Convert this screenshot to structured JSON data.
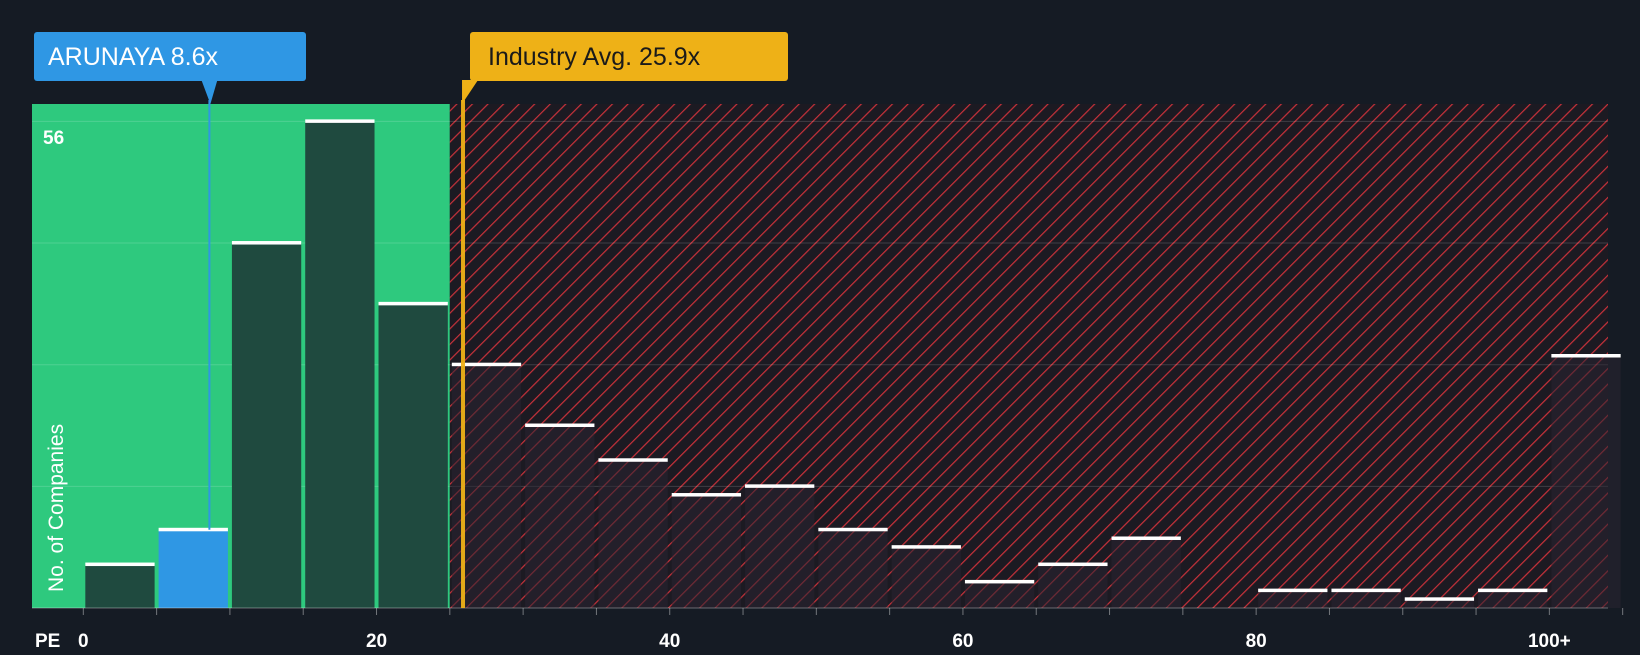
{
  "chart_data": {
    "type": "bar",
    "xlabel": "PE",
    "ylabel": "No. of Companies",
    "x_ticks": [
      {
        "value": 0,
        "label": "0"
      },
      {
        "value": 20,
        "label": "20"
      },
      {
        "value": 40,
        "label": "40"
      },
      {
        "value": 60,
        "label": "60"
      },
      {
        "value": 80,
        "label": "80"
      },
      {
        "value": 100,
        "label": "100+"
      }
    ],
    "xlim": [
      -3.5,
      104
    ],
    "ylim": [
      0,
      58
    ],
    "y_max_label": "56",
    "gridlines_y": [
      14,
      28,
      42,
      56
    ],
    "bin_width": 5,
    "bins": [
      {
        "start": 0,
        "end": 5,
        "value": 5
      },
      {
        "start": 5,
        "end": 10,
        "value": 9,
        "highlight": true
      },
      {
        "start": 10,
        "end": 15,
        "value": 42
      },
      {
        "start": 15,
        "end": 20,
        "value": 56
      },
      {
        "start": 20,
        "end": 25,
        "value": 35
      },
      {
        "start": 25,
        "end": 30,
        "value": 28
      },
      {
        "start": 30,
        "end": 35,
        "value": 21
      },
      {
        "start": 35,
        "end": 40,
        "value": 17
      },
      {
        "start": 40,
        "end": 45,
        "value": 13
      },
      {
        "start": 45,
        "end": 50,
        "value": 14
      },
      {
        "start": 50,
        "end": 55,
        "value": 9
      },
      {
        "start": 55,
        "end": 60,
        "value": 7
      },
      {
        "start": 60,
        "end": 65,
        "value": 3
      },
      {
        "start": 65,
        "end": 70,
        "value": 5
      },
      {
        "start": 70,
        "end": 75,
        "value": 8
      },
      {
        "start": 75,
        "end": 80,
        "value": 0
      },
      {
        "start": 80,
        "end": 85,
        "value": 2
      },
      {
        "start": 85,
        "end": 90,
        "value": 2
      },
      {
        "start": 90,
        "end": 95,
        "value": 1
      },
      {
        "start": 95,
        "end": 100,
        "value": 2
      },
      {
        "start": 100,
        "end": 105,
        "value": 29
      }
    ],
    "green_region_end": 25,
    "company": {
      "label": "ARUNAYA 8.6x",
      "value": 8.6
    },
    "industry_avg": {
      "label": "Industry Avg. 25.9x",
      "value": 25.9
    }
  },
  "colors": {
    "background": "#151b24",
    "green_zone": "#2ec97e",
    "green_bar": "#1f4a3f",
    "highlight_bar": "#2f97e4",
    "company_callout": "#2f97e4",
    "industry_callout": "#eeb117",
    "red_hatch": "#c8313a",
    "red_bar": "#2a2532",
    "bar_cap": "#ffffff",
    "axis_text": "#ffffff"
  }
}
